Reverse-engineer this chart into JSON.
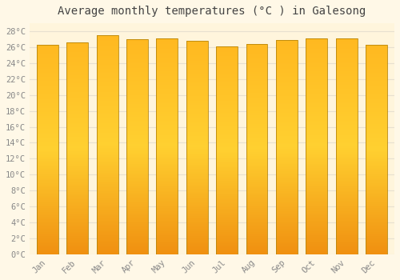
{
  "months": [
    "Jan",
    "Feb",
    "Mar",
    "Apr",
    "May",
    "Jun",
    "Jul",
    "Aug",
    "Sep",
    "Oct",
    "Nov",
    "Dec"
  ],
  "temperatures": [
    26.3,
    26.6,
    27.5,
    27.0,
    27.1,
    26.8,
    26.1,
    26.4,
    26.9,
    27.1,
    27.1,
    26.3
  ],
  "title": "Average monthly temperatures (°C ) in Galesong",
  "ylim": [
    0,
    29
  ],
  "ytick_step": 2,
  "bar_color_bottom": "#F5A623",
  "bar_color_top": "#FFD040",
  "bar_edge_color": "#B8860B",
  "background_color": "#FFF8E7",
  "plot_bg_color": "#FFF5DC",
  "grid_color": "#E8E0D0",
  "title_fontsize": 10,
  "tick_fontsize": 7.5
}
